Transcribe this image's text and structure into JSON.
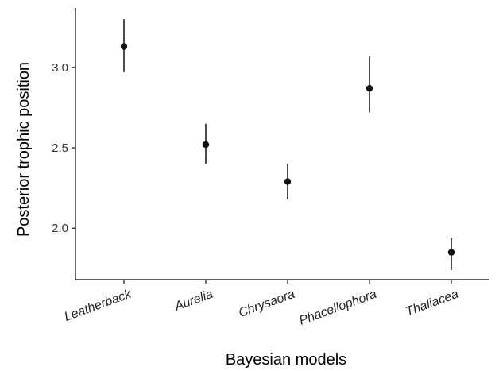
{
  "chart_data": {
    "type": "scatter",
    "title": "",
    "xlabel": "Bayesian models",
    "ylabel": "Posterior trophic position",
    "categories": [
      "Leatherback",
      "Aurelia",
      "Chrysaora",
      "Phacellophora",
      "Thaliacea"
    ],
    "y_ticks": [
      "2.0",
      "2.5",
      "3.0"
    ],
    "ylim": [
      1.68,
      3.37
    ],
    "values": [
      3.13,
      2.52,
      2.29,
      2.87,
      1.85
    ],
    "lower": [
      2.97,
      2.4,
      2.18,
      2.72,
      1.74
    ],
    "upper": [
      3.3,
      2.65,
      2.4,
      3.07,
      1.94
    ],
    "grid": false,
    "legend": "none",
    "colors": {
      "point": "#111111",
      "errorbar": "#111111",
      "axis": "#000000"
    }
  }
}
